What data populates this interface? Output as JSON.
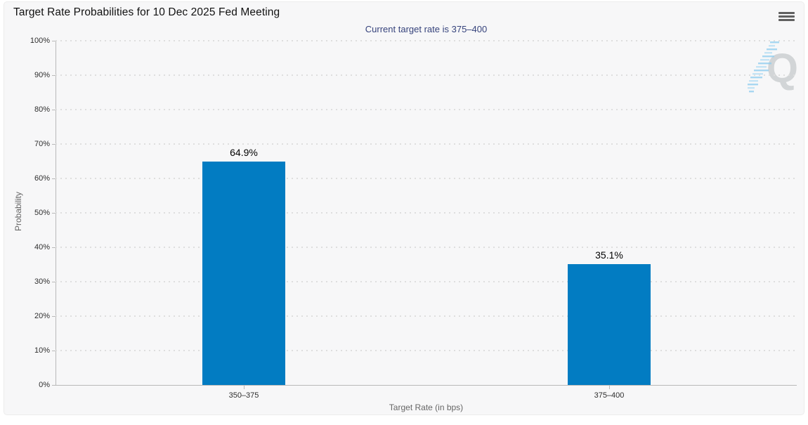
{
  "header": {
    "title": "Target Rate Probabilities for 10 Dec 2025 Fed Meeting"
  },
  "subtitle": "Current target rate is 375–400",
  "watermark": {
    "letter": "Q"
  },
  "chart_data": {
    "type": "bar",
    "title": "Target Rate Probabilities for 10 Dec 2025 Fed Meeting",
    "subtitle": "Current target rate is 375–400",
    "categories": [
      "350–375",
      "375–400"
    ],
    "values": [
      64.9,
      35.1
    ],
    "value_labels": [
      "64.9%",
      "35.1%"
    ],
    "xlabel": "Target Rate (in bps)",
    "ylabel": "Probability",
    "ylim": [
      0,
      100
    ],
    "yticks": [
      "0%",
      "10%",
      "20%",
      "30%",
      "40%",
      "50%",
      "60%",
      "70%",
      "80%",
      "90%",
      "100%"
    ],
    "bar_color": "#027cc2",
    "grid": "horizontal-dotted",
    "legend_position": "none"
  },
  "colors": {
    "bar": "#027cc2",
    "subtitle_text": "#36437c",
    "panel_background": "#f7f7f8",
    "gridline": "#dedede",
    "axis_line": "#b9b9b9"
  }
}
